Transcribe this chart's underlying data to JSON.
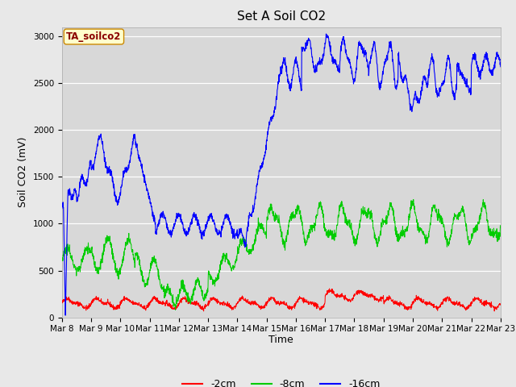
{
  "title": "Set A Soil CO2",
  "ylabel": "Soil CO2 (mV)",
  "xlabel": "Time",
  "legend_label": "TA_soilco2",
  "series_labels": [
    "-2cm",
    "-8cm",
    "-16cm"
  ],
  "series_colors": [
    "#ff0000",
    "#00cc00",
    "#0000ff"
  ],
  "ylim": [
    0,
    3100
  ],
  "fig_bg_color": "#e8e8e8",
  "plot_bg_color": "#d8d8d8",
  "tick_dates": [
    "Mar 8",
    "Mar 9",
    "Mar 10",
    "Mar 11",
    "Mar 12",
    "Mar 13",
    "Mar 14",
    "Mar 15",
    "Mar 16",
    "Mar 17",
    "Mar 18",
    "Mar 19",
    "Mar 20",
    "Mar 21",
    "Mar 22",
    "Mar 23"
  ],
  "n_points": 2000,
  "title_fontsize": 11,
  "axis_fontsize": 9,
  "tick_fontsize": 7.5
}
